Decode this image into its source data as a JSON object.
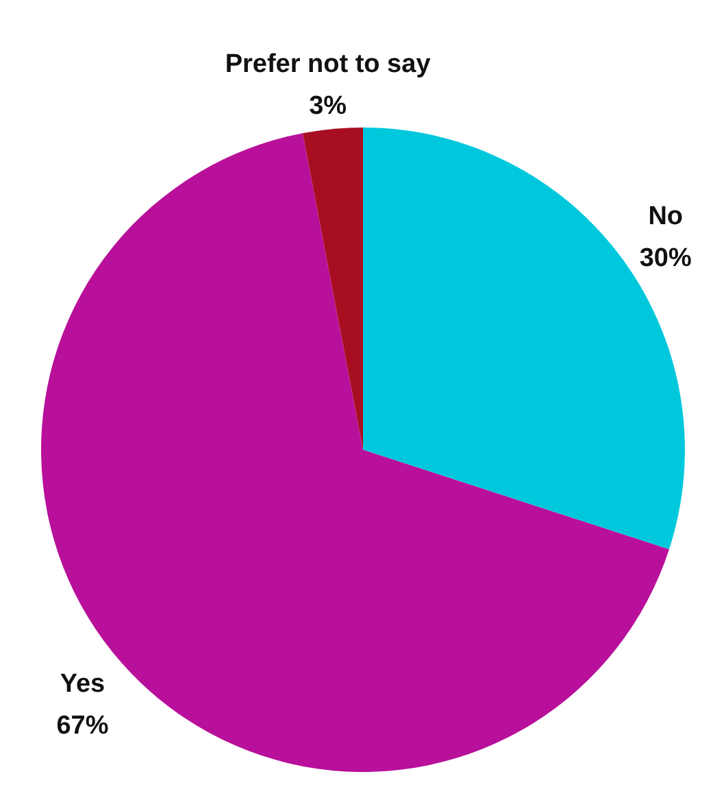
{
  "chart_data": {
    "type": "pie",
    "categories": [
      "No",
      "Yes",
      "Prefer not to say"
    ],
    "values": [
      30,
      67,
      3
    ],
    "colors": [
      "#00c8dc",
      "#b8109a",
      "#a80e22"
    ],
    "value_labels": [
      "30%",
      "67%",
      "3%"
    ]
  }
}
